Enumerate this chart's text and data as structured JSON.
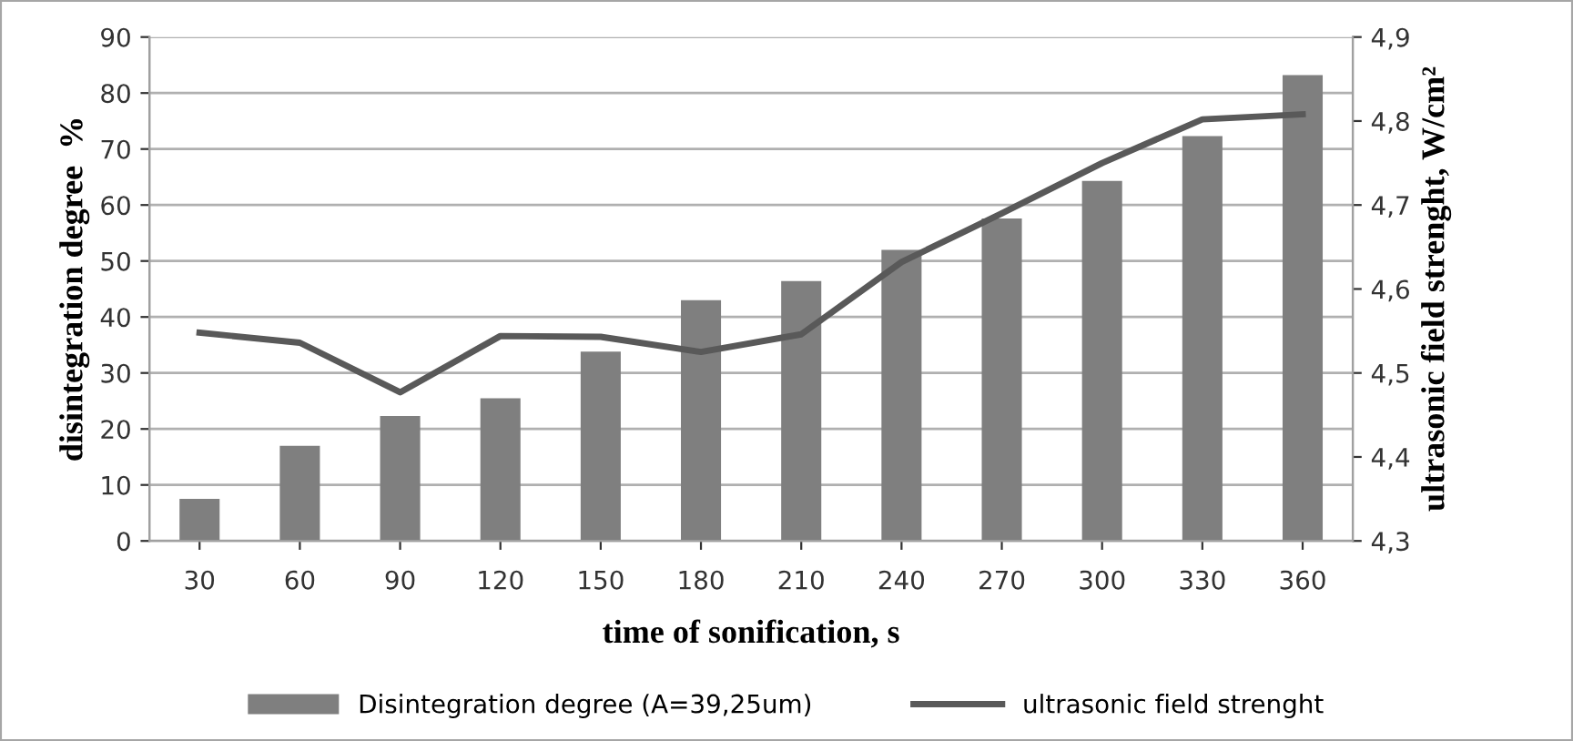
{
  "chart_data": {
    "type": "bar",
    "xlabel": "time of sonification, s",
    "ylabel": "disintegration degree  %",
    "y2label": "ultrasonic field strenght, W/cm²",
    "categories": [
      "30",
      "60",
      "90",
      "120",
      "150",
      "180",
      "210",
      "240",
      "270",
      "300",
      "330",
      "360"
    ],
    "series": [
      {
        "name": "Disintegration degree (A=39,25um)",
        "color": "#7f7f7f",
        "values": [
          7.5,
          17,
          22.3,
          25.5,
          33.8,
          43,
          46.4,
          52,
          57.6,
          64.3,
          72.3,
          83.2
        ]
      },
      {
        "name": "ultrasonic field strenght",
        "type": "line",
        "axis": "y2",
        "color": "#595959",
        "values": [
          4.548,
          4.536,
          4.477,
          4.544,
          4.543,
          4.525,
          4.546,
          4.632,
          4.69,
          4.75,
          4.802,
          4.808
        ]
      }
    ],
    "ylim": [
      0,
      90
    ],
    "yticks": [
      0,
      10,
      20,
      30,
      40,
      50,
      60,
      70,
      80,
      90
    ],
    "y2lim": [
      4.3,
      4.9
    ],
    "y2ticks": [
      {
        "value": 4.3,
        "label": "4,3"
      },
      {
        "value": 4.4,
        "label": "4,4"
      },
      {
        "value": 4.5,
        "label": "4,5"
      },
      {
        "value": 4.6,
        "label": "4,6"
      },
      {
        "value": 4.7,
        "label": "4,7"
      },
      {
        "value": 4.8,
        "label": "4,8"
      },
      {
        "value": 4.9,
        "label": "4,9"
      }
    ],
    "grid": "y",
    "legend": "bottom",
    "marker": "none",
    "line_style": "solid"
  }
}
